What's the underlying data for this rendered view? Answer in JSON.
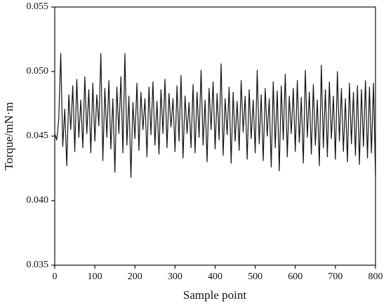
{
  "chart_data": {
    "type": "line",
    "title": "",
    "xlabel": "Sample point",
    "ylabel": "Torque/mN·m",
    "xlim": [
      0,
      800
    ],
    "xticks": [
      0,
      100,
      200,
      300,
      400,
      500,
      600,
      700,
      800
    ],
    "ylim": [
      0.035,
      0.055
    ],
    "yticks": [
      0.035,
      {
        "value": 0.04,
        "label": "0.040"
      },
      0.045,
      {
        "value": 0.05,
        "label": "0.050"
      },
      0.055
    ],
    "grid": false,
    "series": [
      {
        "name": "Torque",
        "color": "#111111",
        "x": [
          0,
          5,
          10,
          15,
          20,
          25,
          30,
          35,
          40,
          45,
          50,
          55,
          60,
          65,
          70,
          75,
          80,
          85,
          90,
          95,
          100,
          105,
          110,
          115,
          120,
          125,
          130,
          135,
          140,
          145,
          150,
          155,
          160,
          165,
          170,
          175,
          180,
          185,
          190,
          195,
          200,
          205,
          210,
          215,
          220,
          225,
          230,
          235,
          240,
          245,
          250,
          255,
          260,
          265,
          270,
          275,
          280,
          285,
          290,
          295,
          300,
          305,
          310,
          315,
          320,
          325,
          330,
          335,
          340,
          345,
          350,
          355,
          360,
          365,
          370,
          375,
          380,
          385,
          390,
          395,
          400,
          405,
          410,
          415,
          420,
          425,
          430,
          435,
          440,
          445,
          450,
          455,
          460,
          465,
          470,
          475,
          480,
          485,
          490,
          495,
          500,
          505,
          510,
          515,
          520,
          525,
          530,
          535,
          540,
          545,
          550,
          555,
          560,
          565,
          570,
          575,
          580,
          585,
          590,
          595,
          600,
          605,
          610,
          615,
          620,
          625,
          630,
          635,
          640,
          645,
          650,
          655,
          660,
          665,
          670,
          675,
          680,
          685,
          690,
          695,
          700,
          705,
          710,
          715,
          720,
          725,
          730,
          735,
          740,
          745,
          750,
          755,
          760,
          765,
          770,
          775,
          780,
          785,
          790,
          795,
          800
        ],
        "values": [
          0.0452,
          0.0447,
          0.0463,
          0.0514,
          0.0442,
          0.0471,
          0.0427,
          0.0482,
          0.0455,
          0.0489,
          0.0438,
          0.0494,
          0.0449,
          0.0478,
          0.0441,
          0.0496,
          0.0452,
          0.0486,
          0.0437,
          0.0491,
          0.0446,
          0.0482,
          0.0458,
          0.0514,
          0.0431,
          0.0487,
          0.0449,
          0.0493,
          0.044,
          0.0479,
          0.0422,
          0.0488,
          0.0452,
          0.0496,
          0.0437,
          0.0514,
          0.0443,
          0.0481,
          0.0418,
          0.0476,
          0.0448,
          0.0491,
          0.0439,
          0.0484,
          0.0455,
          0.0479,
          0.0434,
          0.0488,
          0.0451,
          0.0492,
          0.0443,
          0.0477,
          0.0436,
          0.0486,
          0.0452,
          0.0494,
          0.0441,
          0.0483,
          0.0457,
          0.0479,
          0.0438,
          0.0489,
          0.0446,
          0.0497,
          0.0433,
          0.0481,
          0.0452,
          0.0476,
          0.0441,
          0.049,
          0.0437,
          0.0484,
          0.0449,
          0.0501,
          0.0443,
          0.0478,
          0.043,
          0.0487,
          0.0455,
          0.0492,
          0.044,
          0.0483,
          0.0447,
          0.0506,
          0.0435,
          0.0479,
          0.0451,
          0.0488,
          0.0429,
          0.0484,
          0.0446,
          0.0477,
          0.0439,
          0.0493,
          0.0453,
          0.0481,
          0.0432,
          0.0486,
          0.0448,
          0.0478,
          0.0437,
          0.0501,
          0.0444,
          0.0482,
          0.0431,
          0.0487,
          0.045,
          0.0479,
          0.0426,
          0.0492,
          0.0441,
          0.0485,
          0.0423,
          0.0489,
          0.0447,
          0.0498,
          0.0434,
          0.0481,
          0.0452,
          0.0487,
          0.0438,
          0.0493,
          0.0445,
          0.048,
          0.0429,
          0.0501,
          0.0449,
          0.0484,
          0.0436,
          0.049,
          0.0443,
          0.0478,
          0.0427,
          0.0505,
          0.0441,
          0.0486,
          0.0434,
          0.0492,
          0.0448,
          0.0481,
          0.0432,
          0.05,
          0.0446,
          0.0487,
          0.0438,
          0.0479,
          0.043,
          0.0491,
          0.0444,
          0.0484,
          0.0435,
          0.0489,
          0.0428,
          0.0486,
          0.0442,
          0.0493,
          0.0433,
          0.0488,
          0.0437,
          0.0491,
          0.0419
        ]
      }
    ]
  }
}
